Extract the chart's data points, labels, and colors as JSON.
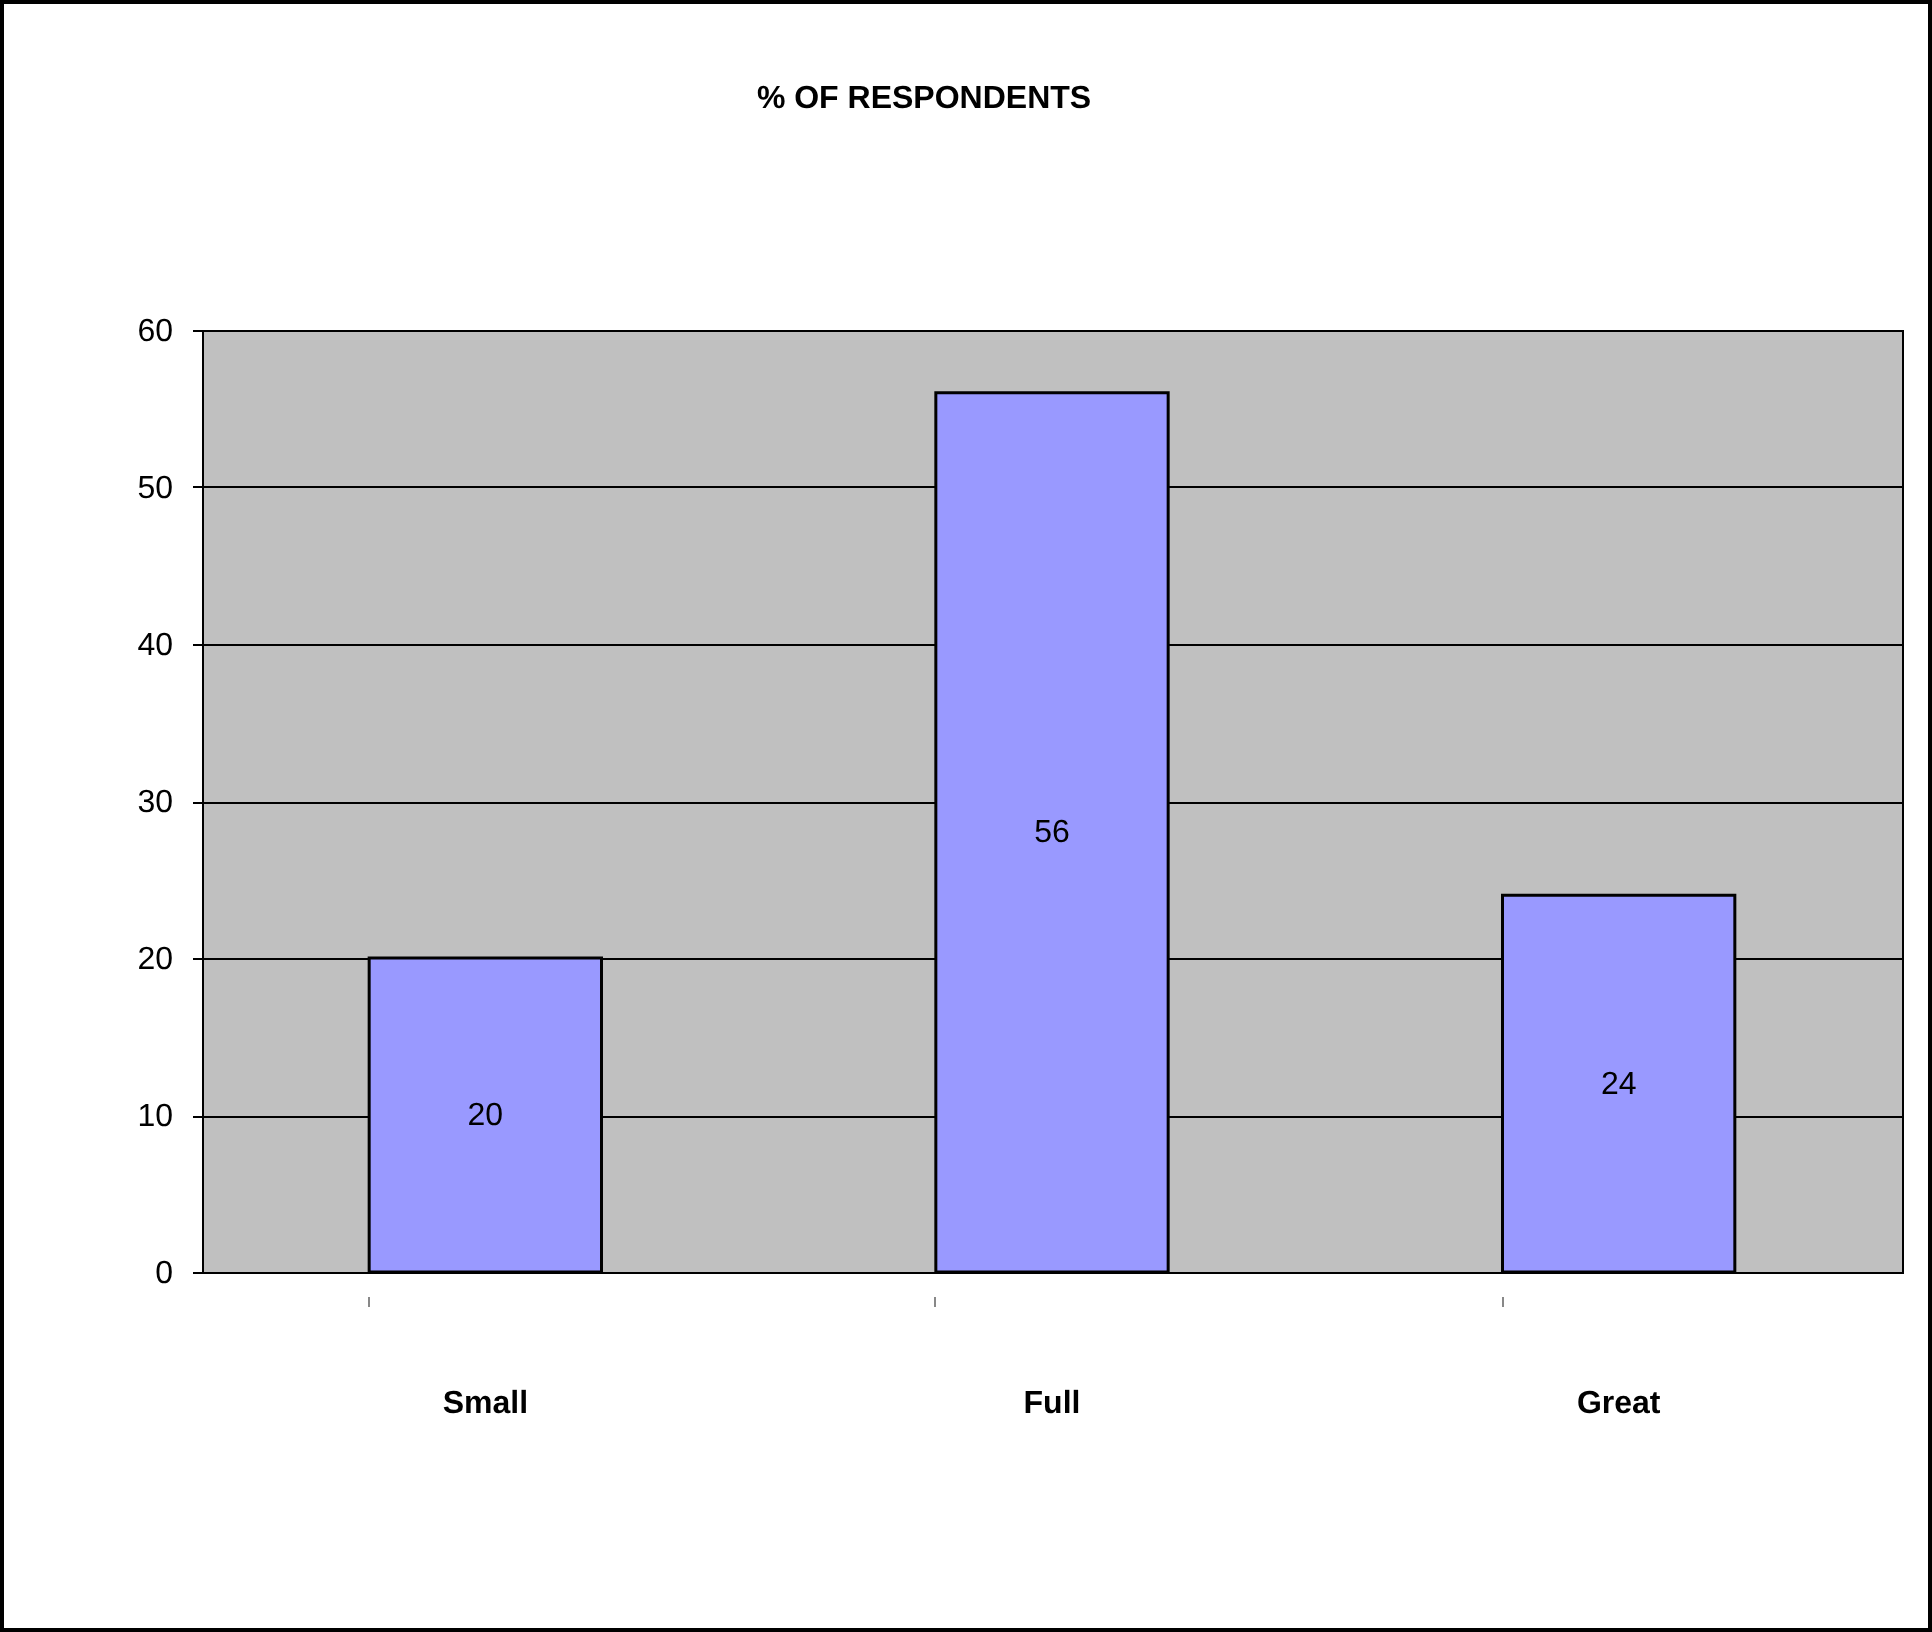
{
  "chart_data": {
    "type": "bar",
    "title": "% OF RESPONDENTS",
    "categories": [
      "Small",
      "Full",
      "Great"
    ],
    "values": [
      20,
      56,
      24
    ],
    "color": "#9999ff",
    "ylim": [
      0,
      60
    ],
    "yticks": [
      0,
      10,
      20,
      30,
      40,
      50,
      60
    ],
    "grid": "y",
    "data_labels": true
  }
}
